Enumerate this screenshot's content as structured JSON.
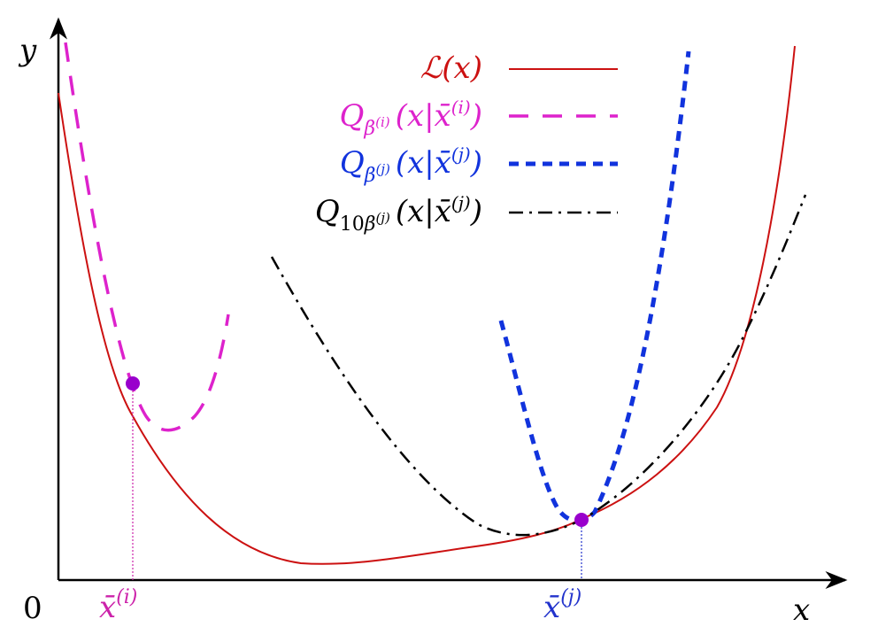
{
  "axes": {
    "y_label": "y",
    "x_label": "x",
    "origin_label": "0"
  },
  "markers": {
    "xi": {
      "bar": "x̄",
      "sup": "(i)",
      "color": "#cc22aa"
    },
    "xj": {
      "bar": "x̄",
      "sup": "(j)",
      "color": "#2233cc"
    },
    "point_color": "#9900cc"
  },
  "legend": [
    {
      "id": "L",
      "main": "ℒ(x)",
      "color": "#cc1111",
      "style": "solid"
    },
    {
      "id": "Qi",
      "Q": "Q",
      "sub_beta": "β",
      "sub_sup": "(i)",
      "arg_open": "(x|",
      "arg_bar": "x̄",
      "arg_sup": "(i)",
      "arg_close": ")",
      "color": "#dd22cc",
      "style": "dashed-long"
    },
    {
      "id": "Qj",
      "Q": "Q",
      "sub_beta": "β",
      "sub_sup": "(j)",
      "arg_open": "(x|",
      "arg_bar": "x̄",
      "arg_sup": "(j)",
      "arg_close": ")",
      "color": "#1133dd",
      "style": "dashed-thick"
    },
    {
      "id": "Q10j",
      "Q": "Q",
      "sub_pre": "10",
      "sub_beta": "β",
      "sub_sup": "(j)",
      "arg_open": "(x|",
      "arg_bar": "x̄",
      "arg_sup": "(j)",
      "arg_close": ")",
      "color": "#000000",
      "style": "dashdot"
    }
  ]
}
